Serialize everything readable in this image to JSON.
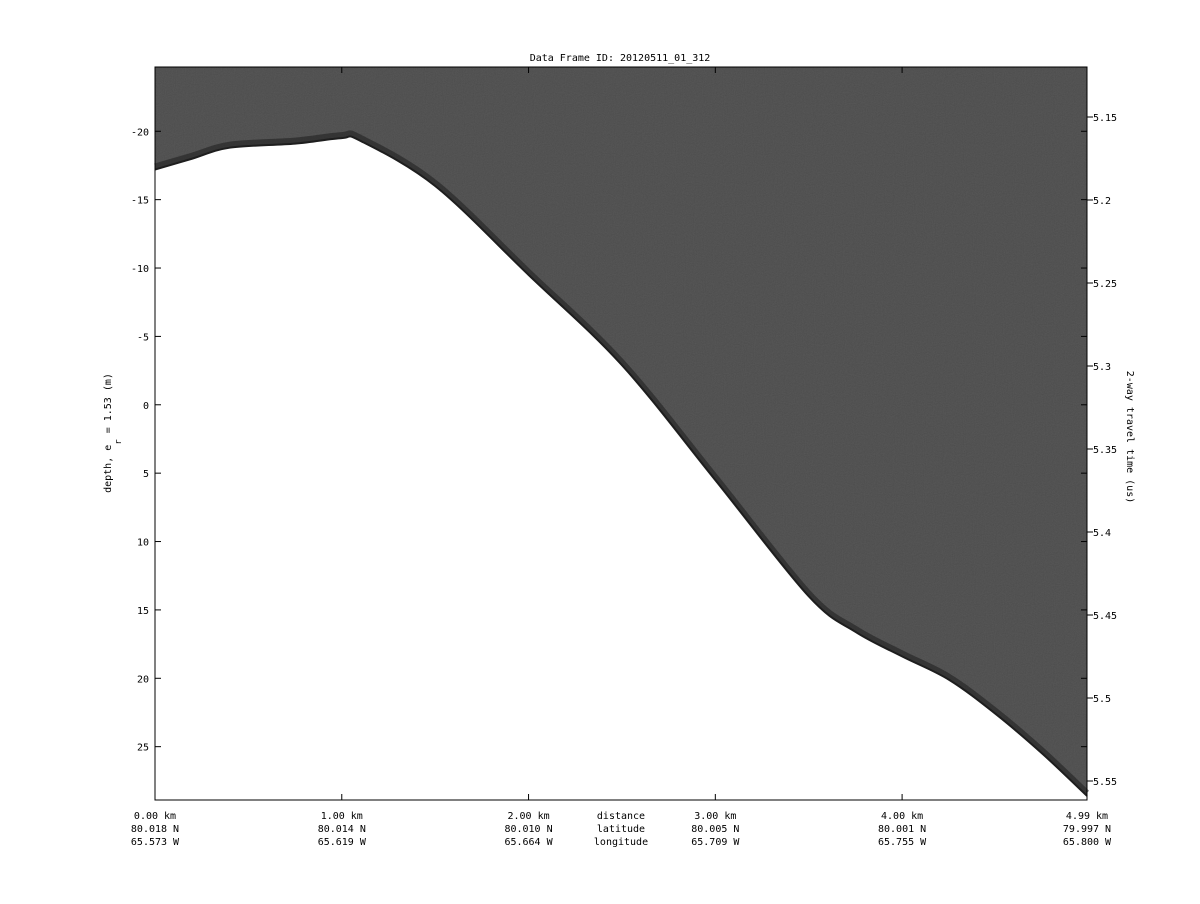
{
  "chart_data": {
    "type": "area",
    "title": "Data Frame ID: 20120511_01_312",
    "ylabel_left_parts": [
      "depth, e",
      "r",
      " = 1.53 (m)"
    ],
    "ylabel_right": "2-way travel time (us)",
    "xlim": [
      0,
      4.99
    ],
    "ylim_left": [
      -24.7,
      28.9
    ],
    "y_inverted": true,
    "grid": false,
    "left_ticks": [
      -20,
      -15,
      -10,
      -5,
      0,
      5,
      10,
      15,
      20,
      25
    ],
    "right_ticks": [
      "5.15",
      "5.2",
      "5.25",
      "5.3",
      "5.35",
      "5.4",
      "5.45",
      "5.5",
      "5.55"
    ],
    "right_tick_values": [
      5.15,
      5.2,
      5.25,
      5.3,
      5.35,
      5.4,
      5.45,
      5.5,
      5.55
    ],
    "x_row_labels": [
      "distance",
      "latitude",
      "longitude"
    ],
    "x_ticks": [
      {
        "km": 0.0,
        "distance": "0.00 km",
        "latitude": "80.018 N",
        "longitude": "65.573 W"
      },
      {
        "km": 1.0,
        "distance": "1.00 km",
        "latitude": "80.014 N",
        "longitude": "65.619 W"
      },
      {
        "km": 2.0,
        "distance": "2.00 km",
        "latitude": "80.010 N",
        "longitude": "65.664 W"
      },
      {
        "km": 3.0,
        "distance": "3.00 km",
        "latitude": "80.005 N",
        "longitude": "65.709 W"
      },
      {
        "km": 4.0,
        "distance": "4.00 km",
        "latitude": "80.001 N",
        "longitude": "65.755 W"
      },
      {
        "km": 4.99,
        "distance": "4.99 km",
        "latitude": "79.997 N",
        "longitude": "65.800 W"
      }
    ],
    "surface_depth": {
      "x_km": [
        0,
        0.2,
        0.4,
        0.75,
        1.0,
        1.1,
        1.5,
        2.0,
        2.5,
        3.0,
        3.5,
        3.75,
        4.0,
        4.25,
        4.5,
        4.75,
        4.99
      ],
      "depth_m": [
        -17.2,
        -18.0,
        -18.8,
        -19.1,
        -19.5,
        -19.3,
        -16.0,
        -9.5,
        -2.9,
        5.5,
        14.0,
        16.6,
        18.4,
        20.1,
        22.6,
        25.5,
        28.6
      ]
    },
    "colors": {
      "echo": "#5a5a5a",
      "surface": "#1e1e1e",
      "background": "#ffffff"
    }
  }
}
